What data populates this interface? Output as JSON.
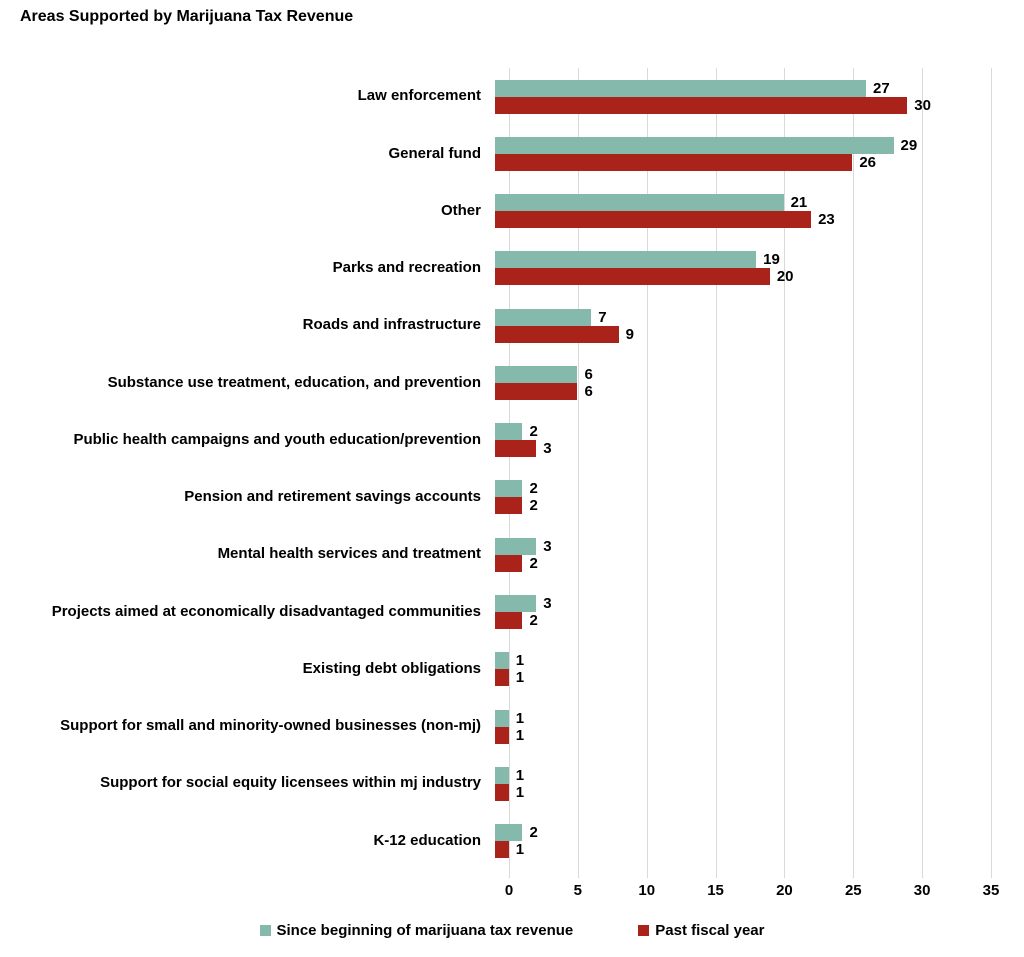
{
  "chart_data": {
    "type": "bar",
    "orientation": "horizontal",
    "title": "Areas Supported by Marijuana Tax Revenue",
    "categories": [
      "Law enforcement",
      "General fund",
      "Other",
      "Parks and recreation",
      "Roads and infrastructure",
      "Substance use treatment, education, and prevention",
      "Public health campaigns and youth education/prevention",
      "Pension and retirement savings accounts",
      "Mental health services and treatment",
      "Projects aimed at economically disadvantaged communities",
      "Existing debt obligations",
      "Support for small and minority-owned businesses (non-mj)",
      "Support for social equity licensees within mj industry",
      "K-12 education"
    ],
    "series": [
      {
        "name": "Since beginning of marijuana tax revenue",
        "color": "#84B9AC",
        "values": [
          27,
          29,
          21,
          19,
          7,
          6,
          2,
          2,
          3,
          3,
          1,
          1,
          1,
          2
        ]
      },
      {
        "name": "Past fiscal year",
        "color": "#A9231A",
        "values": [
          30,
          26,
          23,
          20,
          9,
          6,
          3,
          2,
          2,
          2,
          1,
          1,
          1,
          1
        ]
      }
    ],
    "xlim": [
      0,
      35
    ],
    "x_ticks": [
      0,
      5,
      10,
      15,
      20,
      25,
      30,
      35
    ],
    "xlabel": "",
    "ylabel": "",
    "grid": "vertical-only",
    "legend_position": "bottom",
    "data_labels": "shown-at-bar-end",
    "colors": {
      "gridline": "#D9D9D9",
      "text": "#000000",
      "background": "#FFFFFF"
    }
  }
}
